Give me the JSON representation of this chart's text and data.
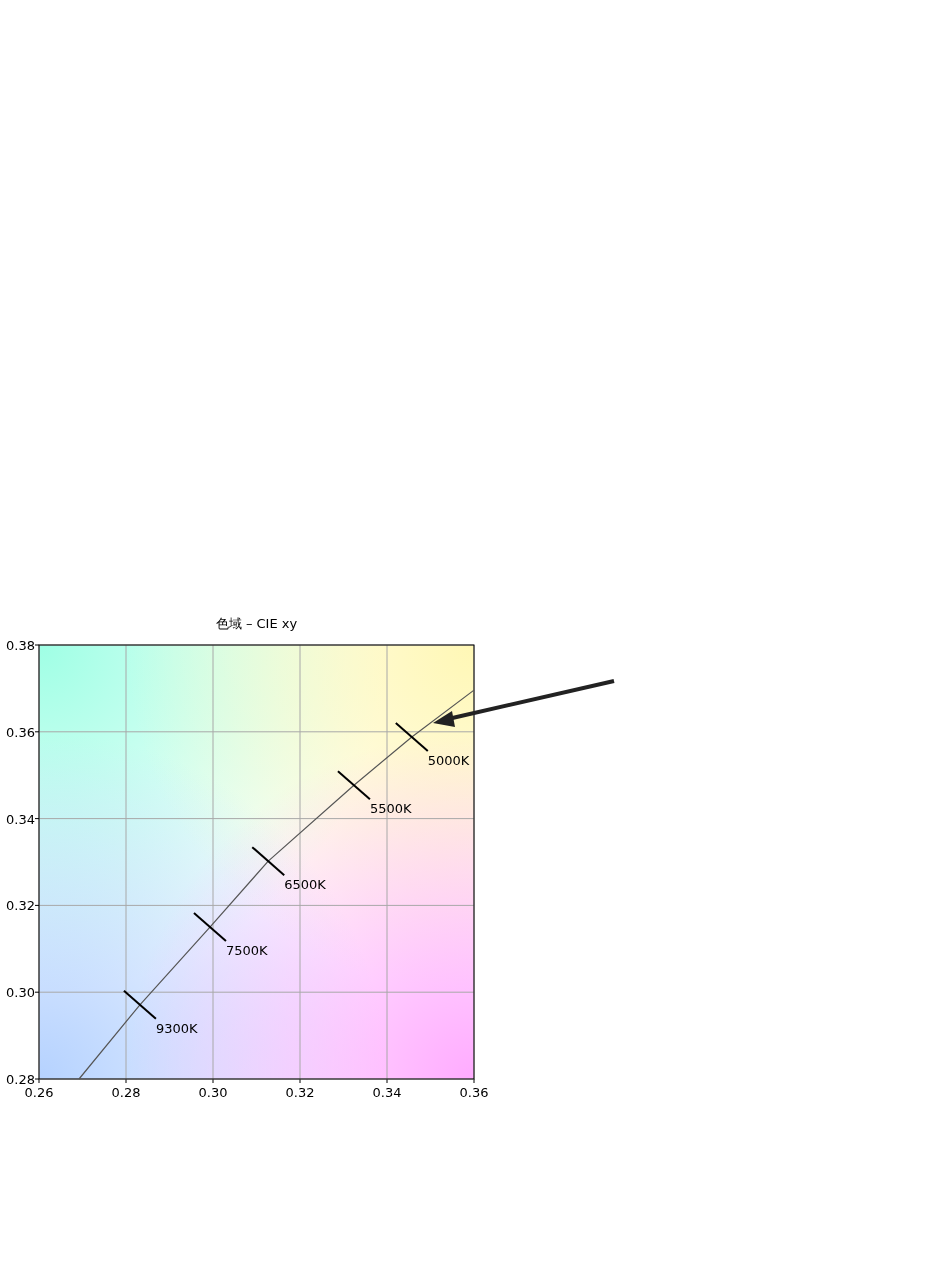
{
  "chart_data": {
    "type": "line",
    "title": "色域 – CIE xy",
    "series": [
      {
        "color": "#555555",
        "x": [
          0.2692,
          0.2832,
          0.2993,
          0.3127,
          0.3324,
          0.3457,
          0.36
        ],
        "values": [
          0.28,
          0.2971,
          0.315,
          0.3302,
          0.3477,
          0.3588,
          0.3696
        ]
      }
    ],
    "xlim": [
      0.26,
      0.36
    ],
    "xticks": [
      0.26,
      0.28,
      {
        "value": 0.3,
        "label": "0.30"
      },
      0.32,
      0.34,
      0.36
    ],
    "ylim": [
      0.28,
      0.38
    ],
    "yticks": [
      0.28,
      {
        "value": 0.3,
        "label": "0.30"
      },
      0.32,
      0.34,
      0.36,
      0.38
    ],
    "grid": true,
    "line_style": "solid",
    "annotations": [
      {
        "text": "9300K",
        "x": 0.2832,
        "y": 0.2971
      },
      {
        "text": "7500K",
        "x": 0.2993,
        "y": 0.315
      },
      {
        "text": "6500K",
        "x": 0.3127,
        "y": 0.3302
      },
      {
        "text": "5500K",
        "x": 0.3324,
        "y": 0.3477
      },
      {
        "text": "5000K",
        "x": 0.3457,
        "y": 0.3588
      }
    ]
  }
}
